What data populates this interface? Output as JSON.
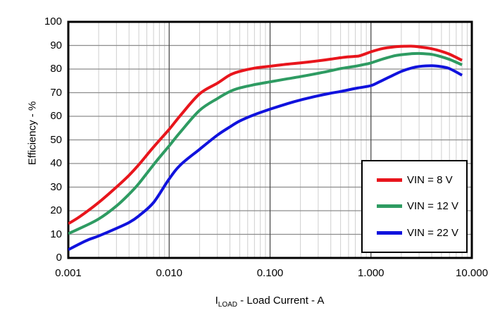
{
  "chart_data": {
    "type": "line",
    "x_scale": "log",
    "xlim": [
      0.001,
      10
    ],
    "ylim": [
      0,
      100
    ],
    "grid": true,
    "ylabel": "Efficiency - %",
    "xlabel": "ILOAD - Load Current - A",
    "xlabel_parts": {
      "prefix": "I",
      "sub": "LOAD",
      "suffix": " - Load Current - A"
    },
    "legend_position": "lower right",
    "colors": {
      "frame": "#000000",
      "grid_horizontal": "#8c8c8c",
      "grid_major_vertical": "#4d4d4d",
      "grid_minor_vertical": "#cfcfcf",
      "background": "#ffffff"
    },
    "y_ticks": [
      {
        "label": "0",
        "value": 0
      },
      {
        "label": "10",
        "value": 10
      },
      {
        "label": "20",
        "value": 20
      },
      {
        "label": "30",
        "value": 30
      },
      {
        "label": "40",
        "value": 40
      },
      {
        "label": "50",
        "value": 50
      },
      {
        "label": "60",
        "value": 60
      },
      {
        "label": "70",
        "value": 70
      },
      {
        "label": "80",
        "value": 80
      },
      {
        "label": "90",
        "value": 90
      },
      {
        "label": "100",
        "value": 100
      }
    ],
    "x_ticks": [
      {
        "label": "0.001",
        "value": 0.001
      },
      {
        "label": "0.010",
        "value": 0.01
      },
      {
        "label": "0.100",
        "value": 0.1
      },
      {
        "label": "1.000",
        "value": 1
      },
      {
        "label": "10.000",
        "value": 10
      }
    ],
    "series": [
      {
        "name": "VIN = 8 V",
        "color": "#e8151c",
        "points": [
          [
            0.001,
            14.5
          ],
          [
            0.0013,
            17.5
          ],
          [
            0.002,
            23.5
          ],
          [
            0.003,
            30
          ],
          [
            0.004,
            35
          ],
          [
            0.005,
            39.5
          ],
          [
            0.007,
            47
          ],
          [
            0.01,
            54.5
          ],
          [
            0.013,
            60.5
          ],
          [
            0.02,
            69.5
          ],
          [
            0.03,
            74
          ],
          [
            0.04,
            77.5
          ],
          [
            0.05,
            79
          ],
          [
            0.07,
            80.4
          ],
          [
            0.1,
            81.2
          ],
          [
            0.15,
            82.1
          ],
          [
            0.2,
            82.6
          ],
          [
            0.3,
            83.5
          ],
          [
            0.4,
            84.2
          ],
          [
            0.5,
            84.8
          ],
          [
            0.6,
            85.2
          ],
          [
            0.75,
            85.5
          ],
          [
            0.85,
            86.2
          ],
          [
            1,
            87.3
          ],
          [
            1.3,
            88.7
          ],
          [
            1.7,
            89.4
          ],
          [
            2,
            89.6
          ],
          [
            2.5,
            89.7
          ],
          [
            3,
            89.4
          ],
          [
            4,
            88.6
          ],
          [
            5,
            87.5
          ],
          [
            6,
            86.3
          ],
          [
            8,
            83.7
          ]
        ]
      },
      {
        "name": "VIN = 12 V",
        "color": "#2e9b62",
        "points": [
          [
            0.001,
            10.3
          ],
          [
            0.0013,
            12.5
          ],
          [
            0.002,
            16.5
          ],
          [
            0.003,
            22
          ],
          [
            0.004,
            27
          ],
          [
            0.005,
            31.5
          ],
          [
            0.007,
            39.5
          ],
          [
            0.01,
            47.5
          ],
          [
            0.013,
            53.5
          ],
          [
            0.02,
            62.5
          ],
          [
            0.03,
            67.5
          ],
          [
            0.04,
            70.5
          ],
          [
            0.05,
            72
          ],
          [
            0.07,
            73.4
          ],
          [
            0.1,
            74.6
          ],
          [
            0.15,
            75.9
          ],
          [
            0.2,
            76.8
          ],
          [
            0.3,
            78.2
          ],
          [
            0.4,
            79.3
          ],
          [
            0.5,
            80.2
          ],
          [
            0.7,
            81.2
          ],
          [
            0.85,
            81.9
          ],
          [
            1,
            82.6
          ],
          [
            1.3,
            84.2
          ],
          [
            1.7,
            85.6
          ],
          [
            2,
            86.1
          ],
          [
            2.5,
            86.5
          ],
          [
            3,
            86.6
          ],
          [
            4,
            86.2
          ],
          [
            5,
            85.2
          ],
          [
            6,
            84.1
          ],
          [
            8,
            81.8
          ]
        ]
      },
      {
        "name": "VIN = 22 V",
        "color": "#1012dd",
        "points": [
          [
            0.001,
            3.5
          ],
          [
            0.0013,
            6
          ],
          [
            0.0016,
            7.8
          ],
          [
            0.002,
            9.3
          ],
          [
            0.003,
            12.5
          ],
          [
            0.004,
            15
          ],
          [
            0.005,
            17.8
          ],
          [
            0.007,
            23.5
          ],
          [
            0.01,
            33.5
          ],
          [
            0.013,
            39.5
          ],
          [
            0.02,
            46
          ],
          [
            0.03,
            52
          ],
          [
            0.04,
            55.5
          ],
          [
            0.05,
            58
          ],
          [
            0.07,
            60.7
          ],
          [
            0.1,
            63
          ],
          [
            0.15,
            65.4
          ],
          [
            0.2,
            66.9
          ],
          [
            0.3,
            68.7
          ],
          [
            0.4,
            69.8
          ],
          [
            0.5,
            70.5
          ],
          [
            0.7,
            71.8
          ],
          [
            1,
            73
          ],
          [
            1.2,
            74.5
          ],
          [
            1.5,
            76.5
          ],
          [
            2,
            79
          ],
          [
            2.5,
            80.4
          ],
          [
            3,
            81.1
          ],
          [
            4,
            81.4
          ],
          [
            5,
            81
          ],
          [
            6,
            80.2
          ],
          [
            8,
            77.4
          ]
        ]
      }
    ]
  }
}
